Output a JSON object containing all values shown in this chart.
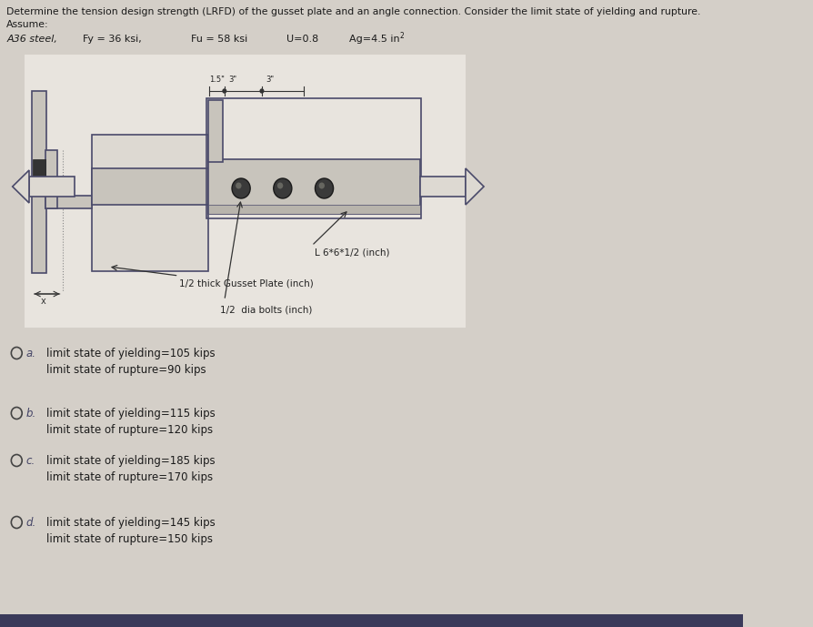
{
  "background_color": "#d4cfc8",
  "text_color": "#1a1a1a",
  "title_line1": "Determine the tension design strength (LRFD) of the gusset plate and an angle connection. Consider the limit state of yielding and rupture.",
  "title_line2": "Assume:",
  "choice_a_line1": "limit state of yielding=105 kips",
  "choice_a_line2": "limit state of rupture=90 kips",
  "choice_b_line1": "limit state of yielding=115 kips",
  "choice_b_line2": "limit state of rupture=120 kips",
  "choice_c_line1": "limit state of yielding=185 kips",
  "choice_c_line2": "limit state of rupture=170 kips",
  "choice_d_line1": "limit state of yielding=145 kips",
  "choice_d_line2": "limit state of rupture=150 kips",
  "label_angle": "L 6*6*1/2 (inch)",
  "label_gusset": "1/2 thick Gusset Plate (inch)",
  "label_bolts": "1/2  dia bolts (inch)",
  "diagram_bg": "#e8e4de",
  "line_color": "#4a4a6a",
  "bolt_dark": "#2a2a2a",
  "arrow_color": "#5a5a7a"
}
